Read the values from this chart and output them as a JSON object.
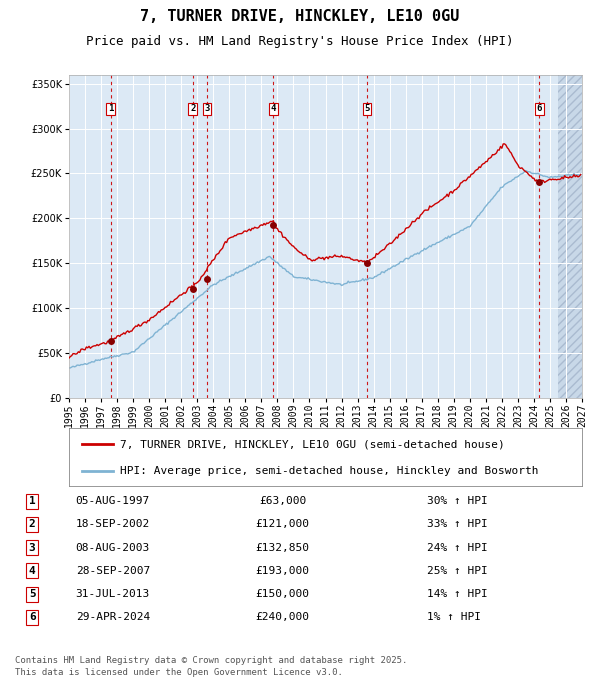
{
  "title": "7, TURNER DRIVE, HINCKLEY, LE10 0GU",
  "subtitle": "Price paid vs. HM Land Registry's House Price Index (HPI)",
  "legend_line1": "7, TURNER DRIVE, HINCKLEY, LE10 0GU (semi-detached house)",
  "legend_line2": "HPI: Average price, semi-detached house, Hinckley and Bosworth",
  "footer": "Contains HM Land Registry data © Crown copyright and database right 2025.\nThis data is licensed under the Open Government Licence v3.0.",
  "transactions": [
    {
      "num": 1,
      "date": "05-AUG-1997",
      "price": 63000,
      "hpi_pct": "30% ↑ HPI",
      "year": 1997.6
    },
    {
      "num": 2,
      "date": "18-SEP-2002",
      "price": 121000,
      "hpi_pct": "33% ↑ HPI",
      "year": 2002.72
    },
    {
      "num": 3,
      "date": "08-AUG-2003",
      "price": 132850,
      "hpi_pct": "24% ↑ HPI",
      "year": 2003.6
    },
    {
      "num": 4,
      "date": "28-SEP-2007",
      "price": 193000,
      "hpi_pct": "25% ↑ HPI",
      "year": 2007.75
    },
    {
      "num": 5,
      "date": "31-JUL-2013",
      "price": 150000,
      "hpi_pct": "14% ↑ HPI",
      "year": 2013.58
    },
    {
      "num": 6,
      "date": "29-APR-2024",
      "price": 240000,
      "hpi_pct": "1% ↑ HPI",
      "year": 2024.33
    }
  ],
  "price_line_color": "#cc0000",
  "hpi_line_color": "#7fb3d3",
  "dashed_line_color": "#cc0000",
  "dot_color": "#880000",
  "plot_bg_color": "#dce9f5",
  "fig_bg_color": "#ffffff",
  "ylim": [
    0,
    360000
  ],
  "yticks": [
    0,
    50000,
    100000,
    150000,
    200000,
    250000,
    300000,
    350000
  ],
  "xstart": 1995,
  "xend": 2027,
  "grid_color": "#ffffff",
  "title_fontsize": 11,
  "subtitle_fontsize": 9,
  "tick_fontsize": 7,
  "legend_fontsize": 8,
  "table_fontsize": 8,
  "footer_fontsize": 6.5
}
